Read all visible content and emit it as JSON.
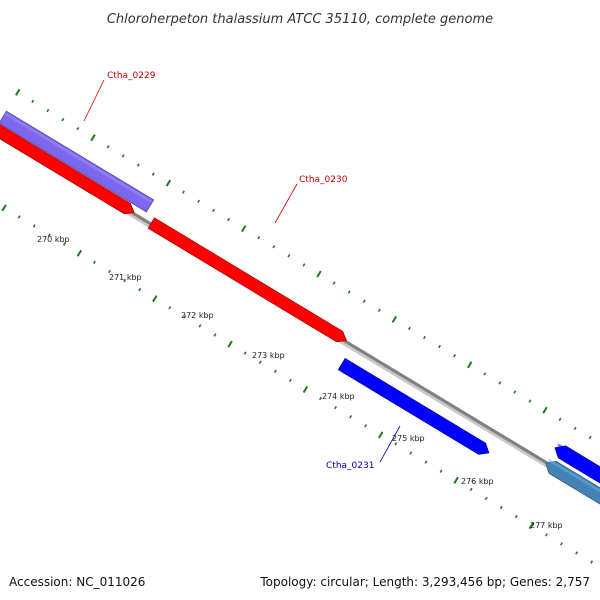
{
  "title": "Chloroherpeton thalassium ATCC 35110, complete genome",
  "footer": {
    "accession": "Accession: NC_011026",
    "summary": "Topology: circular; Length: 3,293,456 bp; Genes: 2,757"
  },
  "colors": {
    "backbone": "#808080",
    "tick": "#1f7a1f",
    "gene_forward": "#ff0000",
    "gene_reverse": "#0000ff",
    "gene_other": "#7b68ee",
    "gene_steel": "#4682b4",
    "label_red": "#cc0000",
    "label_blue": "#000099"
  },
  "ticks": [
    {
      "label": "270 kbp"
    },
    {
      "label": "271 kbp"
    },
    {
      "label": "272 kbp"
    },
    {
      "label": "273 kbp"
    },
    {
      "label": "274 kbp"
    },
    {
      "label": "275 kbp"
    },
    {
      "label": "276 kbp"
    },
    {
      "label": "277 kbp"
    }
  ],
  "genes": [
    {
      "name": "Ctha_0229",
      "labeled": true,
      "color": "#7b68ee",
      "strand": "outer"
    },
    {
      "name": "",
      "labeled": false,
      "color": "#ff0000",
      "strand": "forward"
    },
    {
      "name": "Ctha_0230",
      "labeled": true,
      "color": "#ff0000",
      "strand": "forward"
    },
    {
      "name": "Ctha_0231",
      "labeled": true,
      "color": "#0000ff",
      "strand": "reverse"
    },
    {
      "name": "",
      "labeled": false,
      "color": "#0000ff",
      "strand": "forward"
    },
    {
      "name": "",
      "labeled": false,
      "color": "#4682b4",
      "strand": "reverse"
    }
  ]
}
